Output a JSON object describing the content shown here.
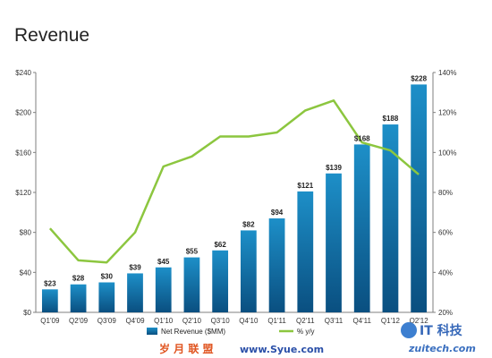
{
  "title": "Revenue",
  "colors": {
    "bar_top": "#1d8fc8",
    "bar_bottom": "#0a4f80",
    "line": "#8cc63f",
    "axis": "#7f7f7f"
  },
  "chart_data": {
    "type": "bar",
    "title": "Revenue",
    "categories": [
      "Q1'09",
      "Q2'09",
      "Q3'09",
      "Q4'09",
      "Q1'10",
      "Q2'10",
      "Q3'10",
      "Q4'10",
      "Q1'11",
      "Q2'11",
      "Q3'11",
      "Q4'11",
      "Q1'12",
      "Q2'12"
    ],
    "series": [
      {
        "name": "Net Revenue ($MM)",
        "type": "bar",
        "axis": "left",
        "values": [
          23,
          28,
          30,
          39,
          45,
          55,
          62,
          82,
          94,
          121,
          139,
          168,
          188,
          228
        ],
        "labels": [
          "$23",
          "$28",
          "$30",
          "$39",
          "$45",
          "$55",
          "$62",
          "$82",
          "$94",
          "$121",
          "$139",
          "$168",
          "$188",
          "$228"
        ]
      },
      {
        "name": "% y/y",
        "type": "line",
        "axis": "right",
        "values": [
          62,
          46,
          45,
          60,
          93,
          98,
          108,
          108,
          110,
          121,
          126,
          105,
          101,
          89
        ]
      }
    ],
    "y_left": {
      "ylim": [
        0,
        240
      ],
      "ticks": [
        "$0",
        "$40",
        "$80",
        "$120",
        "$160",
        "$200",
        "$240"
      ]
    },
    "y_right": {
      "ylim": [
        20,
        140
      ],
      "ticks": [
        "20%",
        "40%",
        "60%",
        "80%",
        "100%",
        "120%",
        "140%"
      ]
    },
    "legend_position": "bottom-center",
    "grid": false
  },
  "watermark": {
    "left_text": "岁 月 联 盟",
    "url_text": "www.Syue.com",
    "brand_cn": "IT 科技",
    "brand_url": "zuitech.com"
  }
}
